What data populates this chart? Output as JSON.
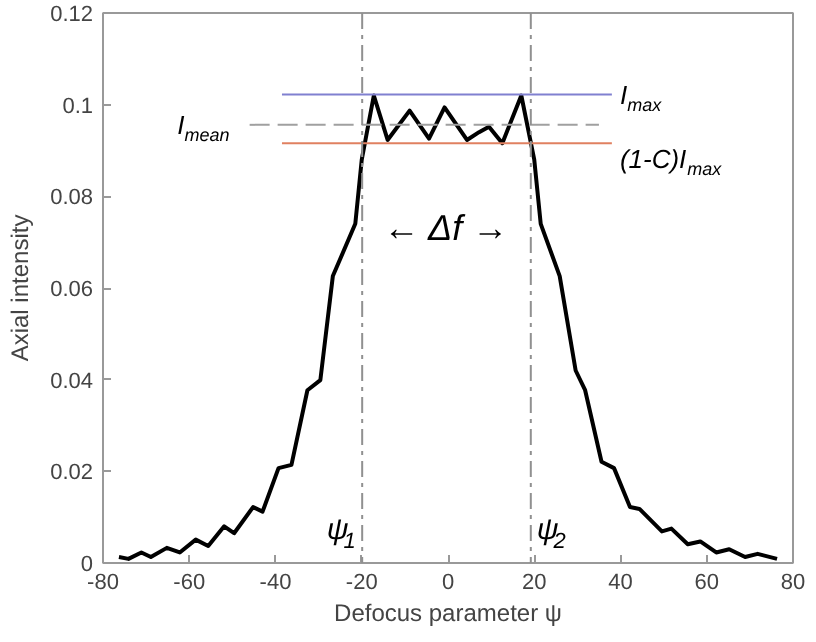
{
  "chart_data": {
    "type": "line",
    "xlabel": "Defocus parameter ψ",
    "ylabel": "Axial intensity",
    "xlim": [
      -80,
      80
    ],
    "ylim": [
      0,
      0.12
    ],
    "xticks": [
      -80,
      -60,
      -40,
      -20,
      0,
      20,
      40,
      60,
      80
    ],
    "yticks": [
      0,
      0.02,
      0.04,
      0.06,
      0.08,
      0.1,
      0.12
    ],
    "grid": false,
    "series": [
      {
        "color": "#000000",
        "x": [
          -76.3,
          -74.1,
          -71.1,
          -68.9,
          -65.2,
          -62.2,
          -58.5,
          -55.6,
          -51.9,
          -49.6,
          -45.2,
          -43,
          -39.3,
          -36.3,
          -32.6,
          -29.6,
          -26.7,
          -21.5,
          -20,
          -17.2,
          -14,
          -8.9,
          -4.4,
          -0.8,
          4.4,
          7.2,
          9.5,
          12.6,
          17,
          20,
          21.5,
          25.9,
          29.6,
          31.8,
          35.6,
          38.5,
          42.2,
          44.4,
          49.6,
          51.8,
          55.6,
          58.5,
          62.2,
          65.2,
          68.9,
          71.8,
          76.3
        ],
        "values": [
          0.0013,
          0.0009,
          0.0023,
          0.0013,
          0.0033,
          0.0023,
          0.0051,
          0.0037,
          0.008,
          0.0065,
          0.0122,
          0.0112,
          0.0207,
          0.0214,
          0.0377,
          0.0399,
          0.0626,
          0.074,
          0.088,
          0.102,
          0.0923,
          0.0987,
          0.0926,
          0.0994,
          0.0923,
          0.094,
          0.0952,
          0.0916,
          0.102,
          0.088,
          0.074,
          0.0626,
          0.042,
          0.0377,
          0.0221,
          0.0207,
          0.0122,
          0.0118,
          0.0069,
          0.0075,
          0.0041,
          0.0047,
          0.0023,
          0.003,
          0.0013,
          0.002,
          0.0009
        ]
      },
      {
        "name": "I$_{max}$",
        "color": "#8080d0",
        "x": [
          -38.5,
          38
        ],
        "values": [
          0.1022,
          0.1022
        ]
      },
      {
        "name": "I$_{mean}$",
        "color": "#a0a0a0",
        "x": [
          -46,
          35
        ],
        "values": [
          0.0956,
          0.0956
        ],
        "line_style": "dashed"
      },
      {
        "name": "(1-C)I$_{max}$",
        "color": "#e08060",
        "x": [
          -38.5,
          38
        ],
        "values": [
          0.0916,
          0.0916
        ]
      }
    ],
    "ref_lines": [
      {
        "axis": "x",
        "value": -19.9,
        "color": "#909090",
        "line_style": "dashdot",
        "label": "ψ$_{1}$"
      },
      {
        "axis": "x",
        "value": 19.2,
        "color": "#909090",
        "line_style": "dashdot",
        "label": "ψ$_{2}$"
      }
    ],
    "annotations": [
      "← Δf →"
    ]
  }
}
